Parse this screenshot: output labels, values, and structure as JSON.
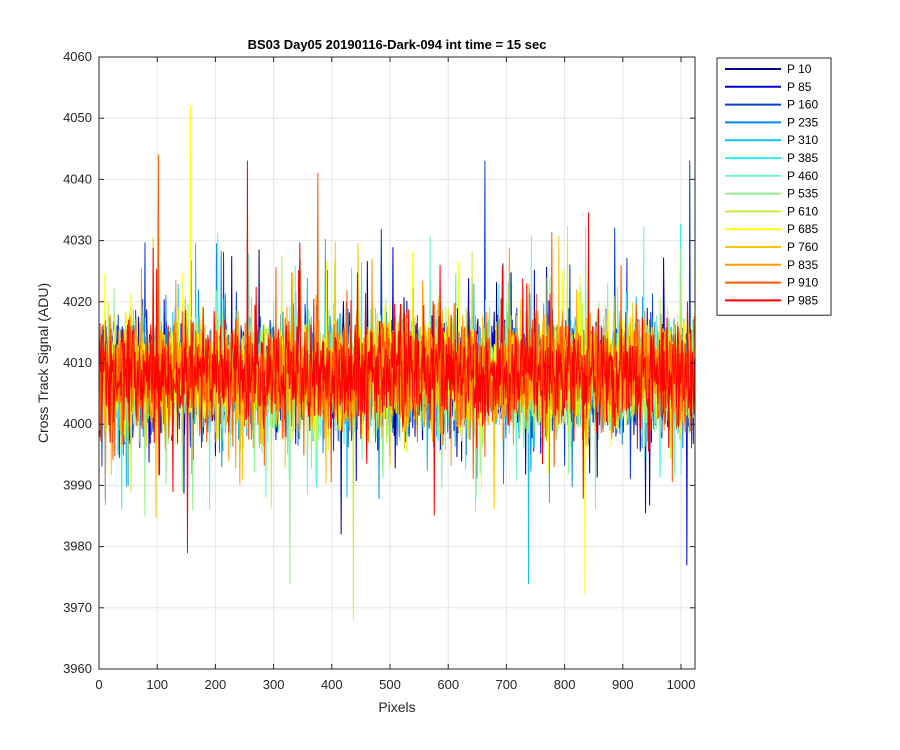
{
  "chart_data": {
    "type": "line",
    "title": "BS03 Day05 20190116-Dark-094 int time = 15 sec",
    "xlabel": "Pixels",
    "ylabel": "Cross Track Signal (ADU)",
    "xlim": [
      0,
      1024
    ],
    "ylim": [
      3960,
      4060
    ],
    "xticks": [
      0,
      100,
      200,
      300,
      400,
      500,
      600,
      700,
      800,
      900,
      1000
    ],
    "yticks": [
      3960,
      3970,
      3980,
      3990,
      4000,
      4010,
      4020,
      4030,
      4040,
      4050,
      4060
    ],
    "grid": true,
    "legend_position": "outside-right",
    "series_stats": {
      "mean": 4008,
      "typical_range": [
        3990,
        4028
      ],
      "observed_min": 3968,
      "observed_max": 4052
    },
    "series": [
      {
        "name": "P 10",
        "color": "#00008F"
      },
      {
        "name": "P 85",
        "color": "#0000D8"
      },
      {
        "name": "P 160",
        "color": "#0A3ECF"
      },
      {
        "name": "P 235",
        "color": "#0A8AE8"
      },
      {
        "name": "P 310",
        "color": "#10BFF0"
      },
      {
        "name": "P 385",
        "color": "#33F0F0"
      },
      {
        "name": "P 460",
        "color": "#70F2D0"
      },
      {
        "name": "P 535",
        "color": "#8FF08F"
      },
      {
        "name": "P 610",
        "color": "#C8F040"
      },
      {
        "name": "P 685",
        "color": "#FFFF00"
      },
      {
        "name": "P 760",
        "color": "#F7C800"
      },
      {
        "name": "P 835",
        "color": "#FF9A00"
      },
      {
        "name": "P 910",
        "color": "#FF5A00"
      },
      {
        "name": "P 985",
        "color": "#FF0000"
      }
    ],
    "spikes": [
      {
        "series": "P 685",
        "x": 157,
        "y": 4052
      },
      {
        "series": "P 910",
        "x": 102,
        "y": 4044
      },
      {
        "series": "P 985",
        "x": 255,
        "y": 4043
      },
      {
        "series": "P 160",
        "x": 663,
        "y": 4043
      },
      {
        "series": "P 160",
        "x": 1015,
        "y": 4043
      },
      {
        "series": "P 910",
        "x": 376,
        "y": 4041
      },
      {
        "series": "P 610",
        "x": 437,
        "y": 3968
      },
      {
        "series": "P 535",
        "x": 328,
        "y": 3974
      },
      {
        "series": "P 310",
        "x": 738,
        "y": 3974
      },
      {
        "series": "P 685",
        "x": 835,
        "y": 3972
      },
      {
        "series": "P 85",
        "x": 1010,
        "y": 3977
      },
      {
        "series": "P 985",
        "x": 152,
        "y": 3979
      }
    ]
  }
}
